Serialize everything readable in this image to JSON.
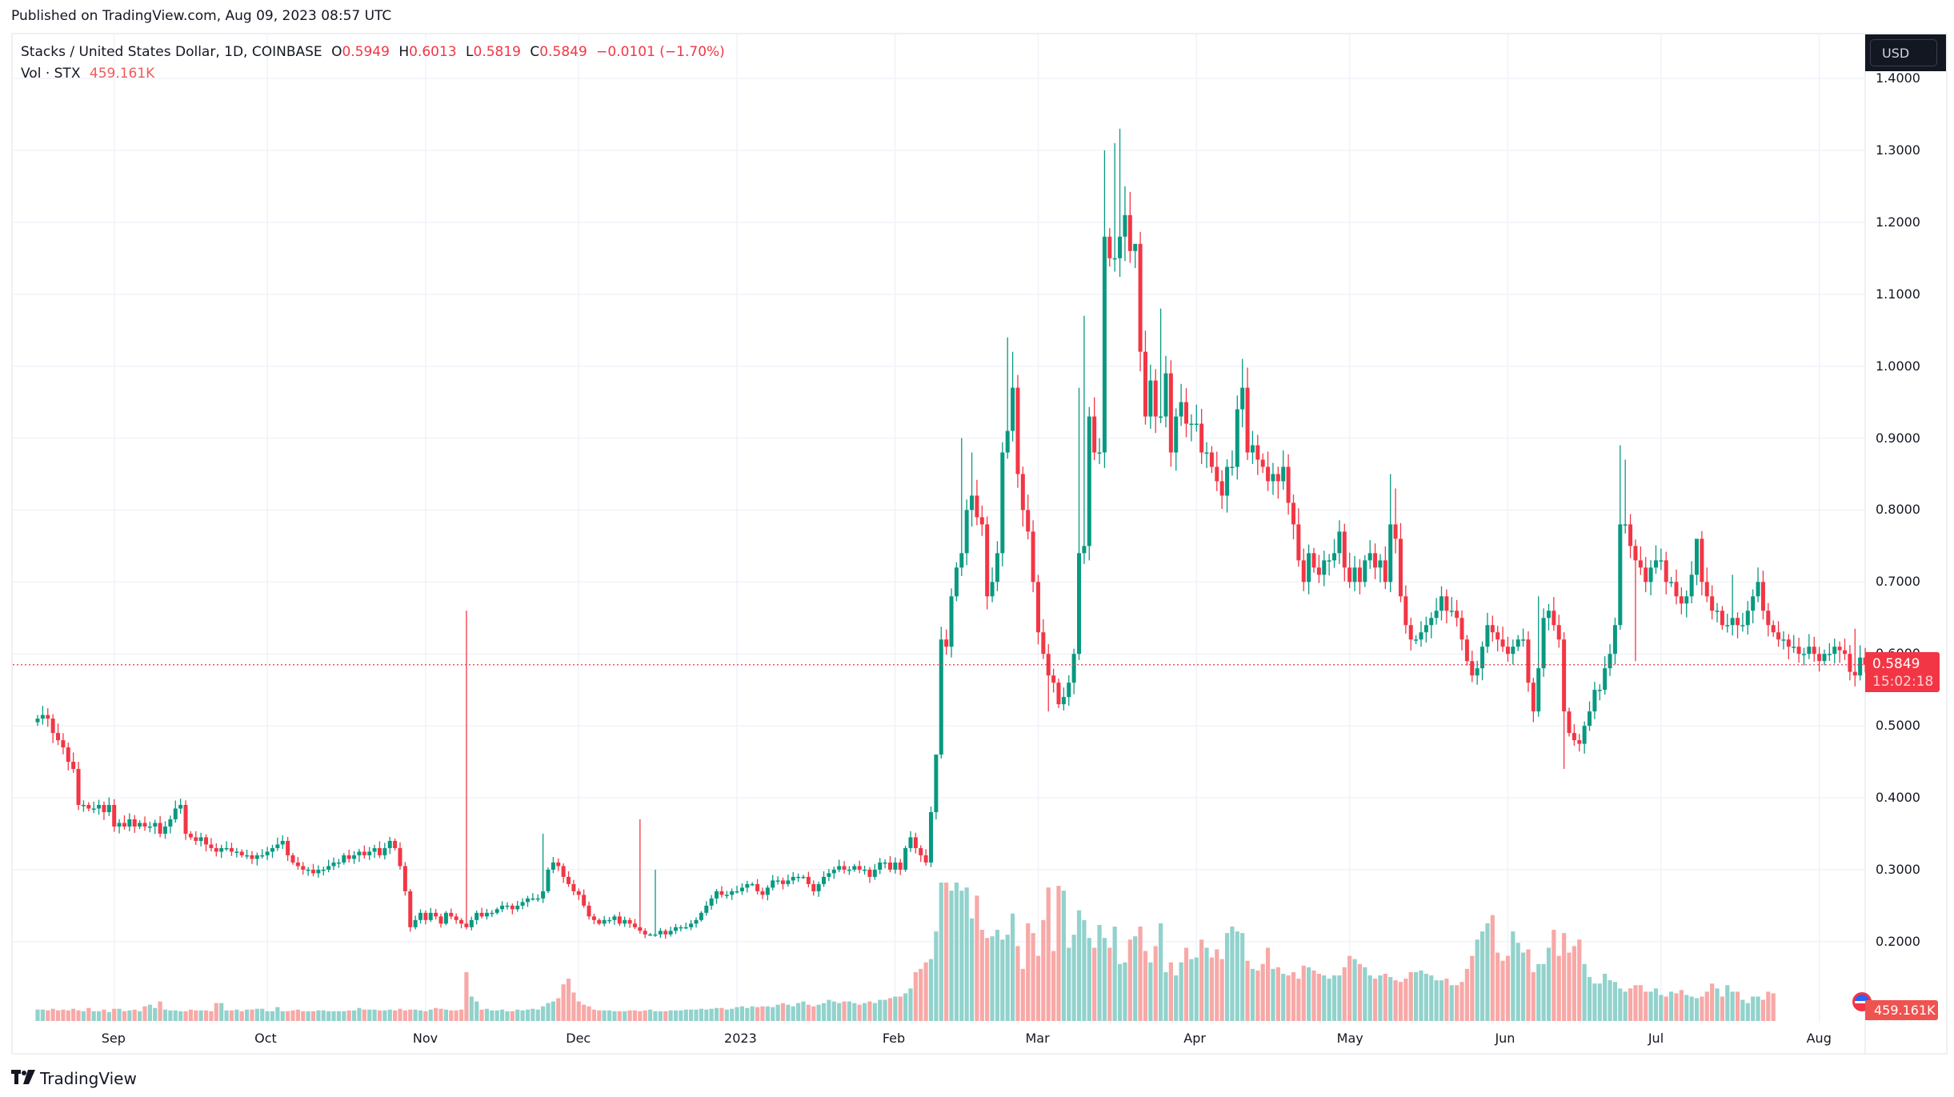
{
  "published": "Published on TradingView.com, Aug 09, 2023 08:57 UTC",
  "legend": {
    "symbol": "Stacks / United States Dollar, 1D, COINBASE",
    "o_label": "O",
    "o": "0.5949",
    "h_label": "H",
    "h": "0.6013",
    "l_label": "L",
    "l": "0.5819",
    "c_label": "C",
    "c": "0.5849",
    "change": "−0.0101 (−1.70%)",
    "vol_label": "Vol · STX",
    "vol": "459.161K"
  },
  "currency_button": "USD",
  "last_price": {
    "value": "0.5849",
    "countdown": "15:02:18"
  },
  "volume_tag": "459.161K",
  "branding": {
    "logo_icon": "tradingview-logo-icon",
    "name": "TradingView"
  },
  "colors": {
    "up": "#089981",
    "down": "#f23645",
    "vol_up": "#92d2cc",
    "vol_down": "#f7a9a7",
    "grid": "#f0f3fa",
    "last_line": "#f23645"
  },
  "chart_data": {
    "type": "candlestick",
    "title": "Stacks / United States Dollar, 1D, COINBASE",
    "xlabel": "",
    "ylabel": "USD",
    "ylim": [
      0.12,
      1.45
    ],
    "grid": true,
    "price_ticks": [
      "1.4000",
      "1.3000",
      "1.2000",
      "1.1000",
      "1.0000",
      "0.9000",
      "0.8000",
      "0.7000",
      "0.6000",
      "0.5000",
      "0.4000",
      "0.3000",
      "0.2000"
    ],
    "time_ticks": [
      {
        "label": "Sep",
        "index": 15
      },
      {
        "label": "Oct",
        "index": 45
      },
      {
        "label": "Nov",
        "index": 76
      },
      {
        "label": "Dec",
        "index": 106
      },
      {
        "label": "2023",
        "index": 137
      },
      {
        "label": "Feb",
        "index": 168
      },
      {
        "label": "Mar",
        "index": 196
      },
      {
        "label": "Apr",
        "index": 227
      },
      {
        "label": "May",
        "index": 257
      },
      {
        "label": "Jun",
        "index": 288
      },
      {
        "label": "Jul",
        "index": 318
      },
      {
        "label": "Aug",
        "index": 349
      }
    ],
    "start_date": "2022-08-17",
    "first_open": 0.505,
    "close": [
      0.51,
      0.515,
      0.51,
      0.49,
      0.48,
      0.47,
      0.45,
      0.44,
      0.39,
      0.39,
      0.385,
      0.385,
      0.39,
      0.38,
      0.39,
      0.36,
      0.365,
      0.36,
      0.37,
      0.36,
      0.365,
      0.36,
      0.36,
      0.365,
      0.35,
      0.36,
      0.37,
      0.385,
      0.39,
      0.35,
      0.345,
      0.34,
      0.345,
      0.335,
      0.33,
      0.325,
      0.33,
      0.33,
      0.325,
      0.325,
      0.32,
      0.32,
      0.315,
      0.32,
      0.32,
      0.325,
      0.33,
      0.335,
      0.34,
      0.32,
      0.31,
      0.305,
      0.3,
      0.3,
      0.295,
      0.3,
      0.3,
      0.305,
      0.31,
      0.31,
      0.32,
      0.315,
      0.32,
      0.325,
      0.32,
      0.325,
      0.33,
      0.32,
      0.33,
      0.34,
      0.33,
      0.305,
      0.27,
      0.22,
      0.23,
      0.24,
      0.23,
      0.24,
      0.235,
      0.225,
      0.24,
      0.235,
      0.23,
      0.225,
      0.22,
      0.23,
      0.24,
      0.235,
      0.24,
      0.24,
      0.245,
      0.25,
      0.25,
      0.245,
      0.25,
      0.255,
      0.26,
      0.26,
      0.26,
      0.27,
      0.3,
      0.31,
      0.305,
      0.29,
      0.28,
      0.27,
      0.265,
      0.25,
      0.235,
      0.23,
      0.225,
      0.23,
      0.23,
      0.235,
      0.225,
      0.23,
      0.225,
      0.22,
      0.215,
      0.21,
      0.21,
      0.21,
      0.215,
      0.21,
      0.215,
      0.22,
      0.22,
      0.22,
      0.225,
      0.23,
      0.24,
      0.25,
      0.26,
      0.27,
      0.265,
      0.265,
      0.27,
      0.27,
      0.275,
      0.28,
      0.28,
      0.27,
      0.265,
      0.275,
      0.285,
      0.285,
      0.28,
      0.285,
      0.29,
      0.29,
      0.29,
      0.28,
      0.27,
      0.28,
      0.29,
      0.295,
      0.3,
      0.305,
      0.3,
      0.3,
      0.305,
      0.3,
      0.3,
      0.29,
      0.3,
      0.31,
      0.31,
      0.3,
      0.31,
      0.3,
      0.33,
      0.345,
      0.33,
      0.32,
      0.31,
      0.38,
      0.46,
      0.62,
      0.61,
      0.68,
      0.72,
      0.74,
      0.8,
      0.82,
      0.79,
      0.78,
      0.68,
      0.7,
      0.74,
      0.88,
      0.91,
      0.97,
      0.85,
      0.8,
      0.77,
      0.7,
      0.63,
      0.6,
      0.57,
      0.56,
      0.53,
      0.54,
      0.56,
      0.6,
      0.74,
      0.75,
      0.93,
      0.88,
      0.88,
      1.18,
      1.15,
      1.15,
      1.18,
      1.21,
      1.16,
      1.17,
      1.02,
      0.93,
      0.98,
      0.93,
      0.93,
      0.99,
      0.88,
      0.93,
      0.95,
      0.92,
      0.92,
      0.92,
      0.88,
      0.88,
      0.86,
      0.84,
      0.82,
      0.86,
      0.86,
      0.94,
      0.97,
      0.88,
      0.89,
      0.87,
      0.86,
      0.84,
      0.85,
      0.84,
      0.86,
      0.81,
      0.78,
      0.73,
      0.7,
      0.74,
      0.72,
      0.71,
      0.73,
      0.73,
      0.74,
      0.77,
      0.72,
      0.7,
      0.72,
      0.7,
      0.73,
      0.74,
      0.72,
      0.73,
      0.7,
      0.78,
      0.76,
      0.68,
      0.64,
      0.62,
      0.62,
      0.63,
      0.64,
      0.65,
      0.66,
      0.68,
      0.66,
      0.66,
      0.65,
      0.62,
      0.59,
      0.57,
      0.58,
      0.61,
      0.64,
      0.63,
      0.62,
      0.61,
      0.6,
      0.61,
      0.62,
      0.62,
      0.56,
      0.52,
      0.58,
      0.65,
      0.66,
      0.64,
      0.62,
      0.52,
      0.49,
      0.48,
      0.475,
      0.5,
      0.52,
      0.55,
      0.55,
      0.58,
      0.6,
      0.64,
      0.78,
      0.78,
      0.75,
      0.73,
      0.72,
      0.7,
      0.72,
      0.73,
      0.73,
      0.7,
      0.7,
      0.68,
      0.67,
      0.68,
      0.71,
      0.76,
      0.7,
      0.68,
      0.66,
      0.66,
      0.64,
      0.64,
      0.65,
      0.64,
      0.64,
      0.66,
      0.68,
      0.7,
      0.66,
      0.64,
      0.63,
      0.62,
      0.62,
      0.61,
      0.61,
      0.6,
      0.6,
      0.61,
      0.6,
      0.59,
      0.6,
      0.6,
      0.61,
      0.605,
      0.6,
      0.575,
      0.57,
      0.5949,
      0.5849
    ],
    "wick_pct": 0.025,
    "spikes": [
      {
        "index": 84,
        "high": 0.66
      },
      {
        "index": 99,
        "high": 0.35
      },
      {
        "index": 121,
        "high": 0.3
      },
      {
        "index": 118,
        "high": 0.37
      },
      {
        "index": 176,
        "high": 0.43
      },
      {
        "index": 181,
        "high": 0.9
      },
      {
        "index": 183,
        "high": 0.88
      },
      {
        "index": 190,
        "high": 1.04
      },
      {
        "index": 191,
        "high": 1.02
      },
      {
        "index": 198,
        "low": 0.52
      },
      {
        "index": 204,
        "high": 0.97
      },
      {
        "index": 205,
        "high": 1.07
      },
      {
        "index": 209,
        "high": 1.3
      },
      {
        "index": 211,
        "high": 1.31
      },
      {
        "index": 212,
        "high": 1.33
      },
      {
        "index": 213,
        "high": 1.25
      },
      {
        "index": 215,
        "high": 1.17
      },
      {
        "index": 220,
        "high": 1.08
      },
      {
        "index": 236,
        "high": 1.01
      },
      {
        "index": 265,
        "high": 0.85
      },
      {
        "index": 266,
        "high": 0.83
      },
      {
        "index": 294,
        "high": 0.68
      },
      {
        "index": 299,
        "low": 0.44
      },
      {
        "index": 310,
        "high": 0.89
      },
      {
        "index": 311,
        "high": 0.87
      },
      {
        "index": 313,
        "low": 0.59
      },
      {
        "index": 325,
        "high": 0.75
      },
      {
        "index": 332,
        "high": 0.71
      },
      {
        "index": 356,
        "high": 0.635
      }
    ],
    "volume_max_label": "459.161K",
    "volume": [
      14,
      14,
      13,
      15,
      13,
      14,
      13,
      15,
      13,
      12,
      16,
      12,
      12,
      14,
      11,
      15,
      15,
      12,
      13,
      14,
      12,
      18,
      20,
      16,
      24,
      14,
      13,
      13,
      12,
      12,
      14,
      13,
      13,
      13,
      12,
      22,
      22,
      13,
      13,
      14,
      12,
      14,
      14,
      15,
      15,
      12,
      12,
      17,
      12,
      12,
      13,
      14,
      12,
      12,
      12,
      13,
      13,
      12,
      12,
      12,
      12,
      13,
      13,
      16,
      14,
      14,
      14,
      13,
      13,
      14,
      13,
      15,
      13,
      14,
      14,
      13,
      12,
      14,
      16,
      15,
      14,
      13,
      13,
      14,
      60,
      30,
      24,
      14,
      15,
      13,
      13,
      14,
      12,
      12,
      14,
      13,
      14,
      15,
      14,
      18,
      22,
      24,
      28,
      45,
      52,
      35,
      24,
      20,
      18,
      14,
      13,
      13,
      13,
      12,
      12,
      12,
      13,
      13,
      12,
      13,
      14,
      12,
      12,
      12,
      13,
      13,
      13,
      14,
      14,
      14,
      15,
      14,
      15,
      16,
      16,
      14,
      15,
      17,
      18,
      16,
      18,
      17,
      18,
      18,
      17,
      20,
      22,
      20,
      18,
      22,
      24,
      20,
      18,
      20,
      22,
      26,
      24,
      22,
      24,
      24,
      22,
      20,
      22,
      24,
      22,
      26,
      26,
      28,
      30,
      30,
      34,
      40,
      60,
      64,
      72,
      76,
      110,
      170,
      170,
      160,
      170,
      160,
      164,
      126,
      154,
      112,
      102,
      104,
      112,
      100,
      106,
      132,
      92,
      64,
      120,
      108,
      80,
      124,
      164,
      86,
      166,
      160,
      90,
      106,
      136,
      124,
      102,
      90,
      118,
      102,
      90,
      116,
      70,
      72,
      100,
      104,
      116,
      86,
      72,
      92,
      120,
      60,
      72,
      56,
      72,
      90,
      76,
      78,
      100,
      90,
      78,
      88,
      76,
      108,
      116,
      110,
      108,
      74,
      64,
      62,
      70,
      90,
      64,
      66,
      58,
      56,
      60,
      52,
      68,
      66,
      62,
      58,
      56,
      52,
      56,
      56,
      66,
      80,
      76,
      70,
      66,
      56,
      52,
      56,
      58,
      54,
      50,
      48,
      52,
      60,
      60,
      62,
      58,
      56,
      50,
      50,
      52,
      44,
      44,
      48,
      64,
      80,
      100,
      110,
      120,
      130,
      84,
      74,
      80,
      110,
      96,
      84,
      88,
      60,
      70,
      70,
      90,
      112,
      80,
      108,
      84,
      92,
      100,
      70,
      54,
      46,
      46,
      58,
      50,
      48,
      40,
      36,
      40,
      44,
      44,
      36,
      36,
      40,
      32,
      30,
      36,
      34,
      38,
      32,
      30,
      28,
      30,
      36,
      46,
      40,
      30,
      44,
      36,
      36,
      26,
      22,
      30,
      30,
      26,
      36,
      34
    ],
    "volume_scale_max": 230
  }
}
